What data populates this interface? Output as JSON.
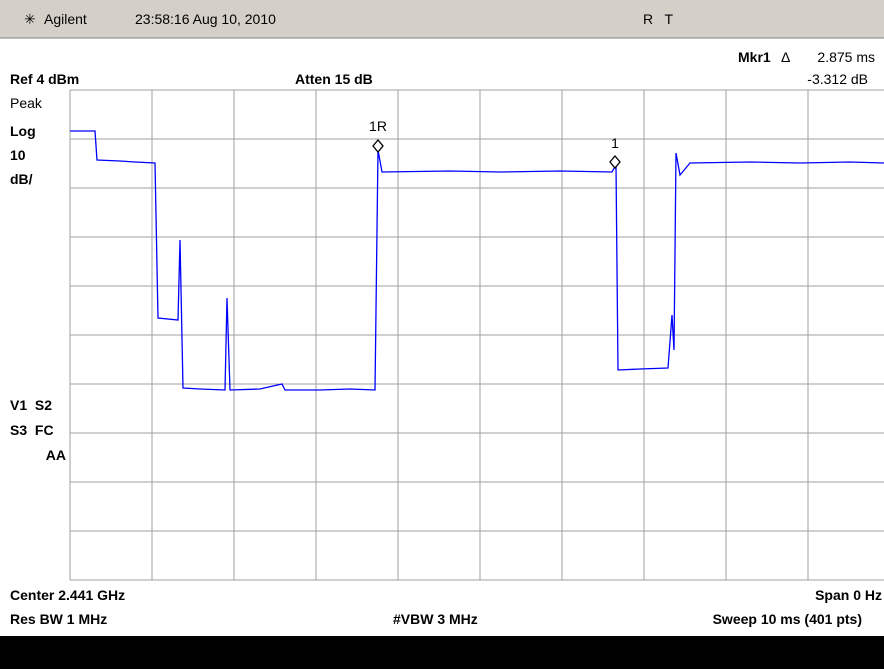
{
  "header": {
    "brand": "Agilent",
    "timestamp": "23:58:16  Aug 10, 2010",
    "status": "R   T"
  },
  "marker": {
    "name": "Mkr1",
    "delta": "Δ",
    "time": "2.875 ms",
    "level": "-3.312 dB"
  },
  "settings": {
    "ref": "Ref 4 dBm",
    "atten": "Atten 15 dB",
    "detector": "Peak",
    "scale": "Log",
    "scale_value": "10",
    "scale_unit": "dB/"
  },
  "trace_labels": {
    "ref_marker": "1R",
    "marker": "1"
  },
  "side": {
    "line1": "V1  S2",
    "line2": "S3  FC",
    "line3": "AA"
  },
  "footer": {
    "center": "Center 2.441 GHz",
    "span": "Span 0 Hz",
    "rbw": "Res BW 1 MHz",
    "vbw": "#VBW 3 MHz",
    "sweep": "Sweep 10 ms (401 pts)"
  }
}
